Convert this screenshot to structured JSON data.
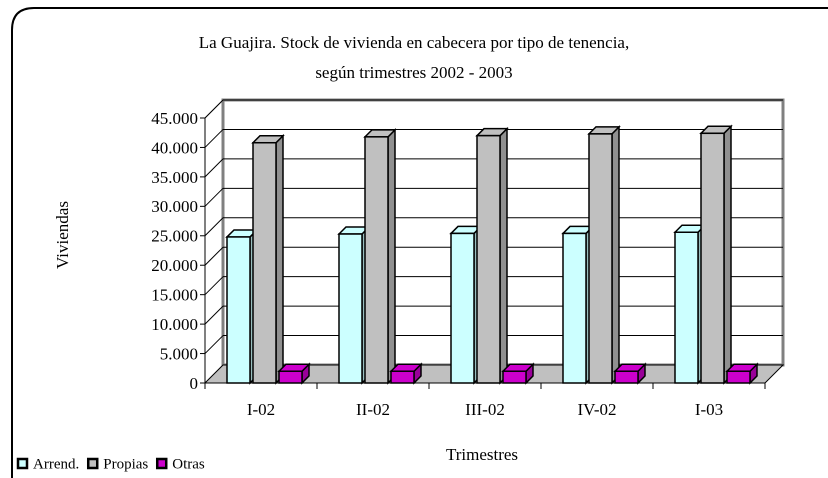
{
  "chart_data": {
    "type": "bar3d",
    "title": "La Guajira. Stock de vivienda en cabecera por tipo de tenencia,",
    "subtitle": "según trimestres 2002 - 2003",
    "y_label": "Viviendas",
    "x_label": "Trimestres",
    "categories": [
      "I-02",
      "II-02",
      "III-02",
      "IV-02",
      "I-03"
    ],
    "series": [
      {
        "name": "Arrend.",
        "color": "#ccffff",
        "values": [
          24800,
          25300,
          25400,
          25400,
          25600
        ]
      },
      {
        "name": "Propias",
        "color": "#c0c0c0",
        "values": [
          40800,
          41800,
          42000,
          42300,
          42400
        ]
      },
      {
        "name": "Otras",
        "color": "#cc00cc",
        "values": [
          2000,
          2000,
          2000,
          2000,
          2000
        ]
      }
    ],
    "ylim": [
      0,
      45000
    ],
    "yticks": [
      0,
      {
        "value": 5000,
        "label": "5.000"
      },
      {
        "value": 10000,
        "label": "10.000"
      },
      {
        "value": 15000,
        "label": "15.000"
      },
      {
        "value": 20000,
        "label": "20.000"
      },
      {
        "value": 25000,
        "label": "25.000"
      },
      {
        "value": 30000,
        "label": "30.000"
      },
      {
        "value": 35000,
        "label": "35.000"
      },
      {
        "value": 40000,
        "label": "40.000"
      },
      {
        "value": 45000,
        "label": "45.000"
      }
    ],
    "grid": true,
    "legend": "bottom-left"
  }
}
